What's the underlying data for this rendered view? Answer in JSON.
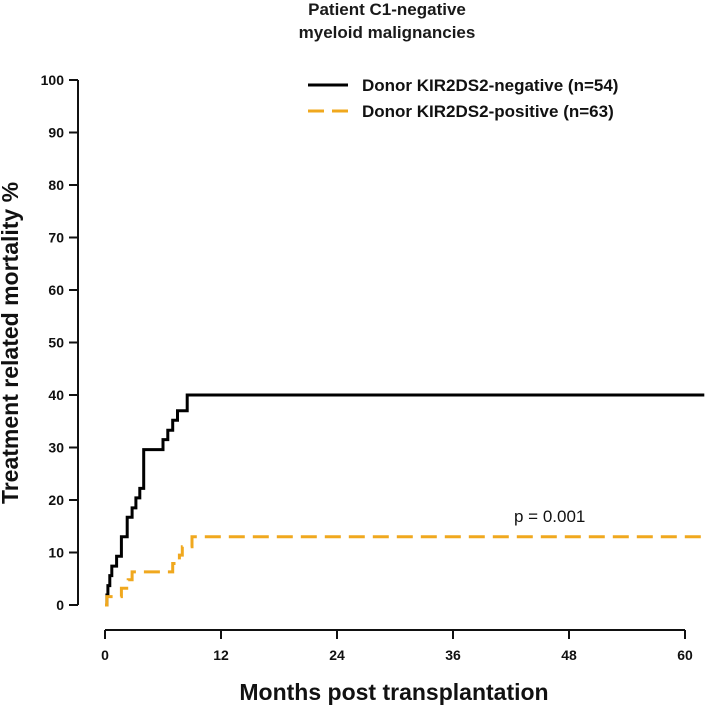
{
  "chart_data": {
    "type": "line",
    "title_lines": [
      "Patient C1-negative",
      "myeloid malignancies"
    ],
    "xlabel": "Months post transplantation",
    "ylabel": "Treatment related mortality %",
    "xlim": [
      0,
      60
    ],
    "ylim": [
      0,
      100
    ],
    "x_ticks": [
      0,
      12,
      24,
      36,
      48,
      60
    ],
    "y_ticks": [
      0,
      10,
      20,
      30,
      40,
      50,
      60,
      70,
      80,
      90,
      100
    ],
    "grid": false,
    "legend_position": "top-right",
    "annotation": {
      "text": "p = 0.001",
      "x": 43,
      "y": 15
    },
    "series": [
      {
        "name": "Donor KIR2DS2-negative (n=54)",
        "color": "#000000",
        "dash": "solid",
        "x": [
          0,
          0.2,
          0.3,
          0.5,
          0.7,
          1.2,
          1.7,
          2.3,
          2.8,
          3.2,
          3.6,
          4.0,
          5.5,
          6.0,
          6.5,
          7.0,
          7.5,
          8.0,
          8.5,
          62
        ],
        "y": [
          0,
          1.9,
          3.7,
          5.6,
          7.4,
          9.3,
          13.0,
          16.7,
          18.5,
          20.4,
          22.2,
          29.6,
          29.6,
          31.5,
          33.3,
          35.2,
          37.0,
          37.0,
          40.0,
          40.0
        ]
      },
      {
        "name": "Donor KIR2DS2-positive (n=63)",
        "color": "#F0A81E",
        "dash": "dashed",
        "x": [
          0,
          0.2,
          0.5,
          1.7,
          2.4,
          2.8,
          6.5,
          7.0,
          7.7,
          8.0,
          9.0,
          62
        ],
        "y": [
          0,
          1.6,
          1.6,
          3.2,
          4.8,
          6.3,
          6.3,
          7.9,
          9.5,
          11.1,
          13.0,
          13.0
        ]
      }
    ]
  }
}
